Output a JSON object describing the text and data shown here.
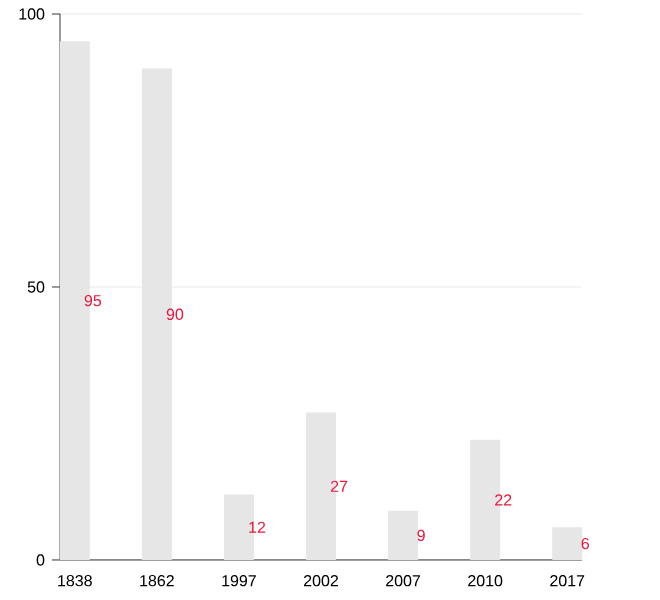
{
  "chart_data": {
    "type": "bar",
    "categories": [
      "1838",
      "1862",
      "1997",
      "2002",
      "2007",
      "2010",
      "2017"
    ],
    "values": [
      95,
      90,
      12,
      27,
      9,
      22,
      6
    ],
    "color": "#e6e6e6",
    "ylim": [
      0,
      100
    ],
    "yticks": [
      0,
      50,
      100
    ],
    "grid": "y",
    "data_labels": true
  }
}
